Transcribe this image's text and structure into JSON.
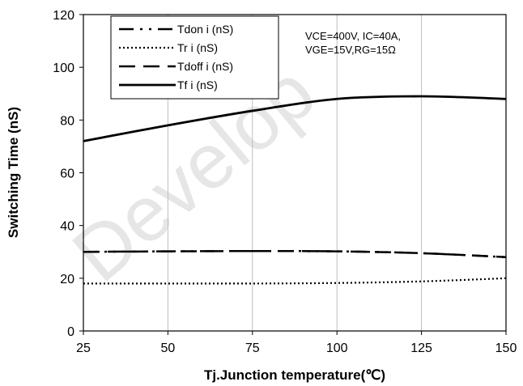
{
  "chart_data": {
    "type": "line",
    "xlabel": "Tj.Junction temperature(℃)",
    "ylabel": "Switching Time (nS)",
    "xlim": [
      25,
      150
    ],
    "ylim": [
      0,
      120
    ],
    "x_ticks": [
      "25",
      "50",
      "75",
      "100",
      "125",
      "150"
    ],
    "y_ticks": [
      "0",
      "20",
      "40",
      "60",
      "80",
      "100",
      "120"
    ],
    "grid": "vertical",
    "legend_position": "top-left",
    "annotation": [
      "VCE=400V, IC=40A,",
      "VGE=15V,RG=15Ω"
    ],
    "watermark": "Develop",
    "x": [
      25,
      50,
      75,
      100,
      125,
      150
    ],
    "series": [
      {
        "name": "Tdon i (nS)",
        "style": "dash-dot-dot",
        "values": [
          30,
          30.2,
          30.3,
          30.2,
          29.5,
          28
        ]
      },
      {
        "name": "Tr i (nS)",
        "style": "dotted",
        "values": [
          18,
          18,
          18,
          18.2,
          18.8,
          20
        ]
      },
      {
        "name": "Tdoff i (nS)",
        "style": "long-dash",
        "values": [
          30,
          30.2,
          30.3,
          30.2,
          29.5,
          28
        ]
      },
      {
        "name": "Tf i (nS)",
        "style": "solid",
        "values": [
          72,
          78,
          83.5,
          88,
          89,
          88
        ]
      }
    ]
  }
}
